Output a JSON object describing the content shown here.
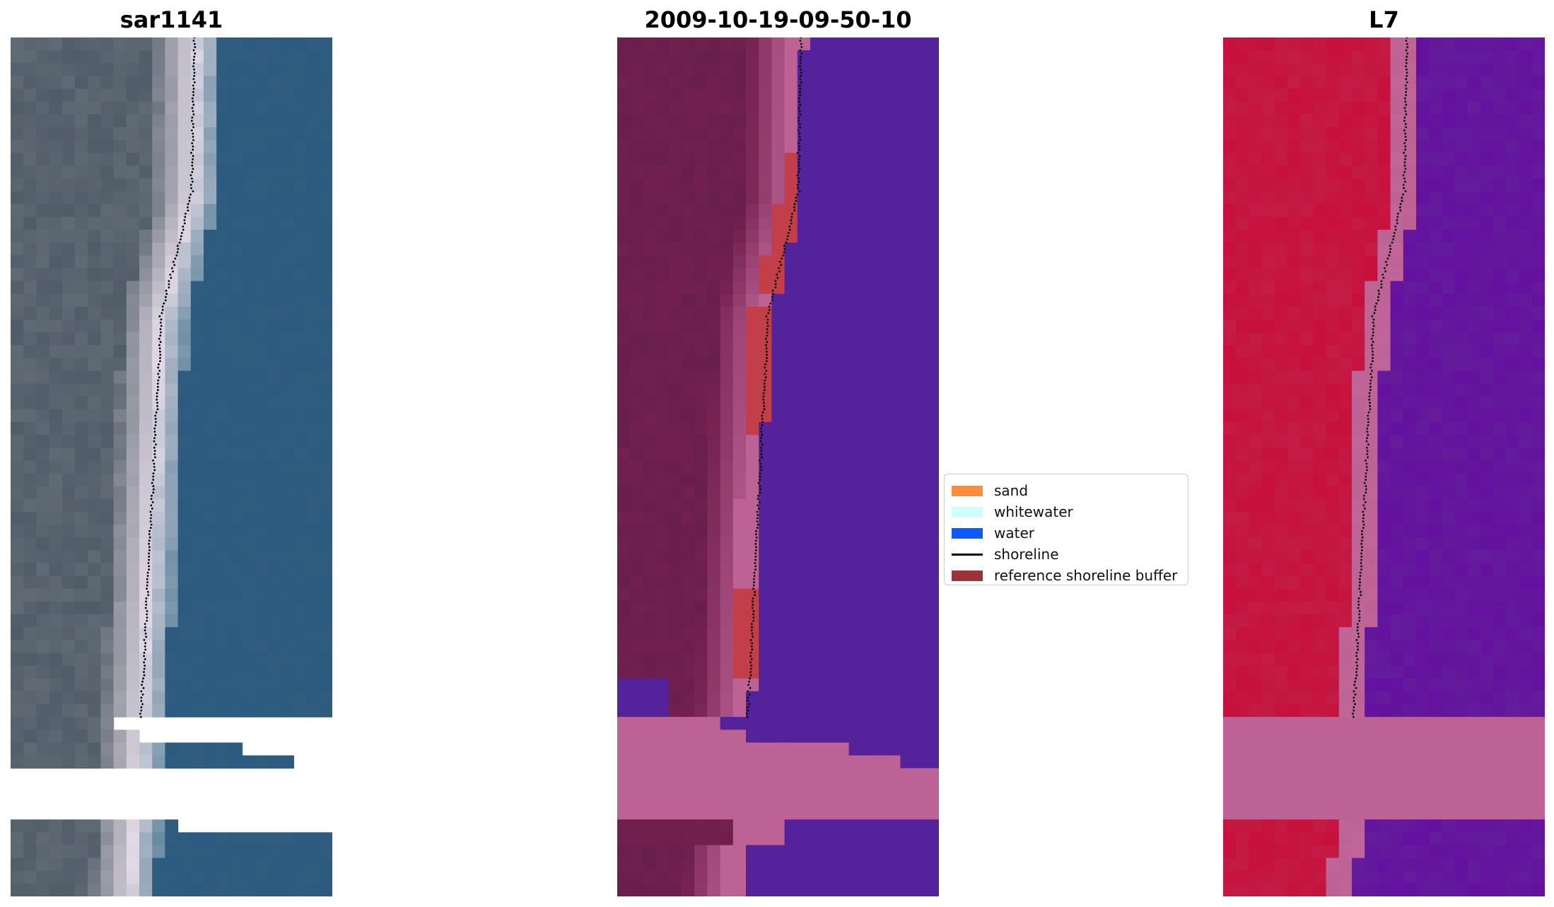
{
  "panels": [
    {
      "title": "sar1141",
      "kind": "rgb"
    },
    {
      "title": "2009-10-19-09-50-10",
      "kind": "classified"
    },
    {
      "title": "L7",
      "kind": "nir"
    }
  ],
  "legend": {
    "items": [
      {
        "label": "sand",
        "color": "#ff8c3b",
        "type": "patch"
      },
      {
        "label": "whitewater",
        "color": "#ccffff",
        "type": "patch"
      },
      {
        "label": "water",
        "color": "#0a5cff",
        "type": "patch"
      },
      {
        "label": "shoreline",
        "color": "#000000",
        "type": "line"
      },
      {
        "label": "reference shoreline buffer",
        "color": "#9e3238",
        "type": "patch"
      }
    ]
  },
  "colors": {
    "rgb_land": "#5f6a74",
    "rgb_water": "#2c5a80",
    "rgb_surf": "#e6dde8",
    "class_land": "#72204f",
    "class_water": "#54229a",
    "class_sand": "#bd6295",
    "class_buffer": "#c23f4a",
    "nir_land": "#c7103b",
    "nir_water": "#6410a0",
    "nir_mask": "#bd6295"
  }
}
